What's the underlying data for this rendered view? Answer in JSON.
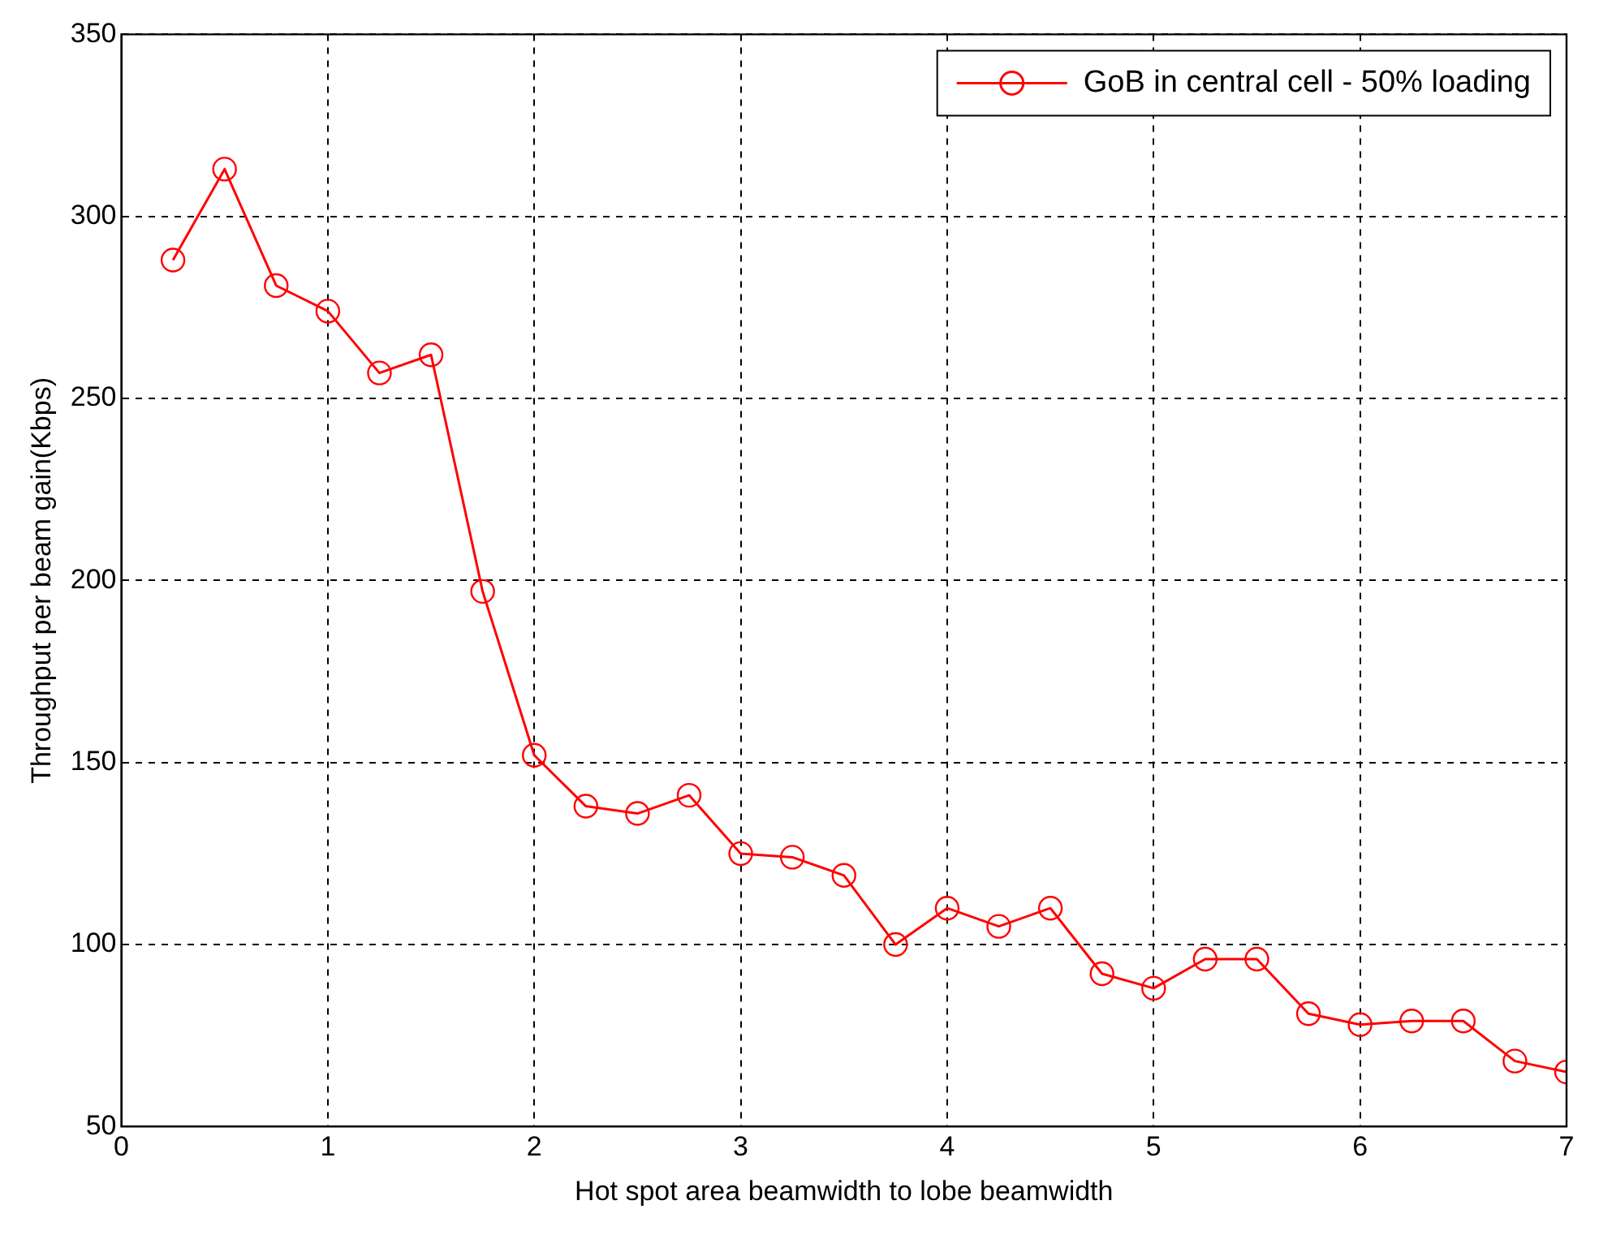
{
  "chart_data": {
    "type": "line",
    "xlabel": "Hot spot area beamwidth to lobe beamwidth",
    "ylabel": "Throughput per beam gain(Kbps)",
    "x": [
      0.25,
      0.5,
      0.75,
      1,
      1.25,
      1.5,
      1.75,
      2,
      2.25,
      2.5,
      2.75,
      3,
      3.25,
      3.5,
      3.75,
      4,
      4.25,
      4.5,
      4.75,
      5,
      5.25,
      5.5,
      5.75,
      6,
      6.25,
      6.5,
      6.75,
      7
    ],
    "series": [
      {
        "name": "GoB in central cell - 50% loading",
        "color": "#ff0000",
        "values": [
          288,
          313,
          281,
          274,
          257,
          262,
          197,
          152,
          138,
          136,
          141,
          125,
          124,
          119,
          100,
          110,
          105,
          110,
          92,
          88,
          96,
          96,
          81,
          78,
          79,
          79,
          68,
          65
        ]
      }
    ],
    "xlim": [
      0,
      7
    ],
    "xticks": [
      0,
      1,
      2,
      3,
      4,
      5,
      6,
      7
    ],
    "ylim": [
      50,
      350
    ],
    "yticks": [
      50,
      100,
      150,
      200,
      250,
      300,
      350
    ],
    "grid": true,
    "legend": "top right",
    "marker": "circle",
    "line_style": "solid"
  }
}
